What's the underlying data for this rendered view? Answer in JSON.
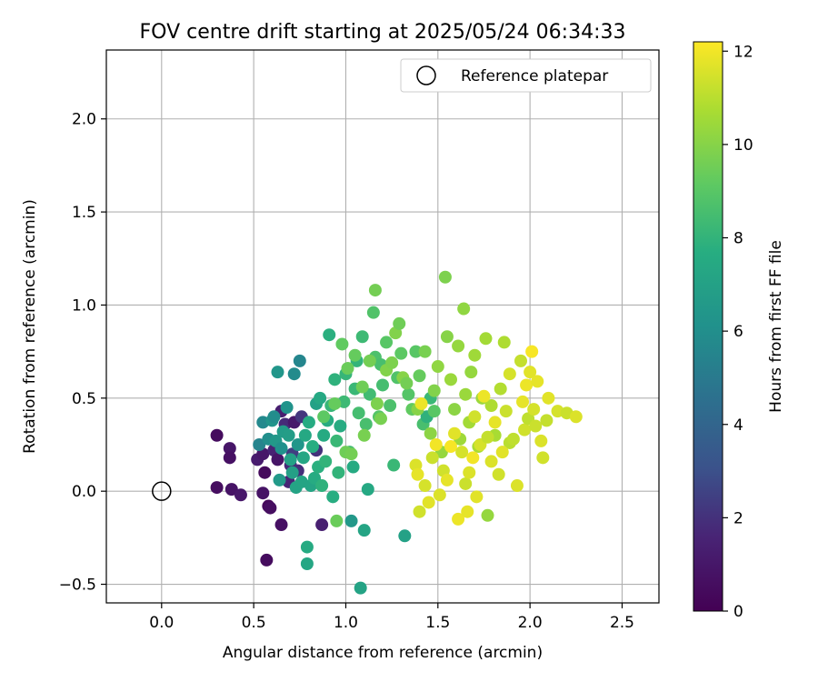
{
  "chart_data": {
    "type": "scatter",
    "title": "FOV centre drift starting at 2025/05/24 06:34:33",
    "xlabel": "Angular distance from reference (arcmin)",
    "ylabel": "Rotation from reference (arcmin)",
    "xlim": [
      -0.3,
      2.7
    ],
    "ylim": [
      -0.6,
      2.37
    ],
    "xticks": [
      0.0,
      0.5,
      1.0,
      1.5,
      2.0,
      2.5
    ],
    "xtick_labels": [
      "0.0",
      "0.5",
      "1.0",
      "1.5",
      "2.0",
      "2.5"
    ],
    "yticks": [
      -0.5,
      0.0,
      0.5,
      1.0,
      1.5,
      2.0
    ],
    "ytick_labels": [
      "−0.5",
      "0.0",
      "0.5",
      "1.0",
      "1.5",
      "2.0"
    ],
    "grid": true,
    "legend": {
      "position": "upper-right",
      "label": "Reference platepar",
      "marker": "open-circle"
    },
    "reference_point": {
      "x": 0.0,
      "y": 0.0
    },
    "colorbar": {
      "label": "Hours from first FF file",
      "colormap": "viridis",
      "range": [
        0,
        12.2
      ],
      "ticks": [
        0,
        2,
        4,
        6,
        8,
        10,
        12
      ],
      "tick_labels": [
        "0",
        "2",
        "4",
        "6",
        "8",
        "10",
        "12"
      ]
    },
    "points": [
      {
        "x": 0.3,
        "y": 0.3,
        "h": 0.5
      },
      {
        "x": 0.3,
        "y": 0.02,
        "h": 0.6
      },
      {
        "x": 0.37,
        "y": 0.23,
        "h": 0.9
      },
      {
        "x": 0.37,
        "y": 0.18,
        "h": 0.7
      },
      {
        "x": 0.38,
        "y": 0.01,
        "h": 0.8
      },
      {
        "x": 0.43,
        "y": -0.02,
        "h": 1.0
      },
      {
        "x": 0.52,
        "y": 0.17,
        "h": 1.2
      },
      {
        "x": 0.55,
        "y": 0.2,
        "h": 1.0
      },
      {
        "x": 0.56,
        "y": 0.1,
        "h": 0.4
      },
      {
        "x": 0.57,
        "y": -0.37,
        "h": 0.5
      },
      {
        "x": 0.55,
        "y": -0.01,
        "h": 0.8
      },
      {
        "x": 0.58,
        "y": -0.08,
        "h": 0.3
      },
      {
        "x": 0.59,
        "y": -0.09,
        "h": 0.6
      },
      {
        "x": 0.61,
        "y": 0.22,
        "h": 1.5
      },
      {
        "x": 0.63,
        "y": 0.17,
        "h": 0.9
      },
      {
        "x": 0.65,
        "y": 0.43,
        "h": 1.3
      },
      {
        "x": 0.65,
        "y": -0.18,
        "h": 0.7
      },
      {
        "x": 0.67,
        "y": 0.36,
        "h": 1.8
      },
      {
        "x": 0.69,
        "y": 0.05,
        "h": 1.6
      },
      {
        "x": 0.7,
        "y": 0.14,
        "h": 1.7
      },
      {
        "x": 0.71,
        "y": 0.2,
        "h": 2.4
      },
      {
        "x": 0.72,
        "y": 0.37,
        "h": 1.1
      },
      {
        "x": 0.74,
        "y": 0.11,
        "h": 1.9
      },
      {
        "x": 0.76,
        "y": 0.4,
        "h": 2.2
      },
      {
        "x": 0.84,
        "y": 0.22,
        "h": 2.0
      },
      {
        "x": 0.87,
        "y": -0.18,
        "h": 1.4
      },
      {
        "x": 0.53,
        "y": 0.25,
        "h": 5.5
      },
      {
        "x": 0.55,
        "y": 0.37,
        "h": 5.7
      },
      {
        "x": 0.58,
        "y": 0.28,
        "h": 6.0
      },
      {
        "x": 0.6,
        "y": 0.38,
        "h": 6.3
      },
      {
        "x": 0.61,
        "y": 0.4,
        "h": 5.9
      },
      {
        "x": 0.62,
        "y": 0.27,
        "h": 6.5
      },
      {
        "x": 0.63,
        "y": 0.64,
        "h": 6.4
      },
      {
        "x": 0.64,
        "y": 0.06,
        "h": 6.6
      },
      {
        "x": 0.65,
        "y": 0.23,
        "h": 6.1
      },
      {
        "x": 0.66,
        "y": 0.32,
        "h": 6.7
      },
      {
        "x": 0.68,
        "y": 0.45,
        "h": 6.2
      },
      {
        "x": 0.69,
        "y": 0.3,
        "h": 6.8
      },
      {
        "x": 0.7,
        "y": 0.17,
        "h": 7.0
      },
      {
        "x": 0.71,
        "y": 0.1,
        "h": 6.9
      },
      {
        "x": 0.72,
        "y": 0.63,
        "h": 5.8
      },
      {
        "x": 0.73,
        "y": 0.02,
        "h": 7.1
      },
      {
        "x": 0.74,
        "y": 0.25,
        "h": 6.4
      },
      {
        "x": 0.75,
        "y": 0.7,
        "h": 5.6
      },
      {
        "x": 0.76,
        "y": 0.05,
        "h": 7.2
      },
      {
        "x": 0.77,
        "y": 0.18,
        "h": 7.3
      },
      {
        "x": 0.78,
        "y": 0.3,
        "h": 7.4
      },
      {
        "x": 0.79,
        "y": -0.3,
        "h": 7.5
      },
      {
        "x": 0.79,
        "y": -0.39,
        "h": 7.3
      },
      {
        "x": 0.8,
        "y": 0.37,
        "h": 7.6
      },
      {
        "x": 0.81,
        "y": 0.03,
        "h": 7.2
      },
      {
        "x": 0.82,
        "y": 0.24,
        "h": 7.7
      },
      {
        "x": 0.83,
        "y": 0.07,
        "h": 7.6
      },
      {
        "x": 0.84,
        "y": 0.47,
        "h": 7.0
      },
      {
        "x": 0.85,
        "y": 0.13,
        "h": 7.8
      },
      {
        "x": 0.86,
        "y": 0.5,
        "h": 7.4
      },
      {
        "x": 0.87,
        "y": 0.03,
        "h": 7.9
      },
      {
        "x": 0.88,
        "y": 0.3,
        "h": 7.5
      },
      {
        "x": 0.89,
        "y": 0.16,
        "h": 8.0
      },
      {
        "x": 0.9,
        "y": 0.38,
        "h": 7.6
      },
      {
        "x": 0.91,
        "y": 0.84,
        "h": 7.8
      },
      {
        "x": 0.92,
        "y": 0.46,
        "h": 8.1
      },
      {
        "x": 0.93,
        "y": -0.03,
        "h": 7.7
      },
      {
        "x": 0.94,
        "y": 0.6,
        "h": 7.9
      },
      {
        "x": 0.95,
        "y": 0.27,
        "h": 8.2
      },
      {
        "x": 0.96,
        "y": 0.1,
        "h": 8.0
      },
      {
        "x": 0.97,
        "y": 0.35,
        "h": 7.6
      },
      {
        "x": 0.99,
        "y": 0.48,
        "h": 8.3
      },
      {
        "x": 1.0,
        "y": 0.63,
        "h": 8.1
      },
      {
        "x": 1.02,
        "y": 0.21,
        "h": 8.4
      },
      {
        "x": 1.03,
        "y": -0.16,
        "h": 6.5
      },
      {
        "x": 1.04,
        "y": 0.13,
        "h": 7.5
      },
      {
        "x": 1.05,
        "y": 0.55,
        "h": 8.2
      },
      {
        "x": 1.06,
        "y": 0.7,
        "h": 8.0
      },
      {
        "x": 1.07,
        "y": 0.42,
        "h": 8.5
      },
      {
        "x": 1.08,
        "y": -0.52,
        "h": 7.1
      },
      {
        "x": 1.09,
        "y": 0.83,
        "h": 8.3
      },
      {
        "x": 1.1,
        "y": -0.21,
        "h": 7.2
      },
      {
        "x": 1.11,
        "y": 0.36,
        "h": 8.6
      },
      {
        "x": 1.12,
        "y": 0.01,
        "h": 7.4
      },
      {
        "x": 1.13,
        "y": 0.52,
        "h": 8.4
      },
      {
        "x": 1.15,
        "y": 0.96,
        "h": 8.8
      },
      {
        "x": 1.16,
        "y": 0.72,
        "h": 8.7
      },
      {
        "x": 1.18,
        "y": 0.4,
        "h": 8.9
      },
      {
        "x": 1.19,
        "y": 0.68,
        "h": 8.6
      },
      {
        "x": 1.2,
        "y": 0.57,
        "h": 8.5
      },
      {
        "x": 1.22,
        "y": 0.8,
        "h": 9.0
      },
      {
        "x": 1.24,
        "y": 0.46,
        "h": 8.7
      },
      {
        "x": 1.26,
        "y": 0.14,
        "h": 8.2
      },
      {
        "x": 1.28,
        "y": 0.61,
        "h": 8.8
      },
      {
        "x": 1.3,
        "y": 0.74,
        "h": 9.1
      },
      {
        "x": 1.32,
        "y": -0.24,
        "h": 7.0
      },
      {
        "x": 1.34,
        "y": 0.52,
        "h": 8.9
      },
      {
        "x": 1.36,
        "y": 0.44,
        "h": 9.2
      },
      {
        "x": 1.38,
        "y": 0.75,
        "h": 9.0
      },
      {
        "x": 1.4,
        "y": 0.62,
        "h": 9.3
      },
      {
        "x": 1.42,
        "y": 0.36,
        "h": 8.6
      },
      {
        "x": 1.44,
        "y": 0.4,
        "h": 7.9
      },
      {
        "x": 1.46,
        "y": 0.5,
        "h": 8.2
      },
      {
        "x": 1.48,
        "y": 0.43,
        "h": 9.0
      },
      {
        "x": 0.88,
        "y": 0.4,
        "h": 9.1
      },
      {
        "x": 0.94,
        "y": 0.47,
        "h": 9.3
      },
      {
        "x": 0.95,
        "y": -0.16,
        "h": 9.4
      },
      {
        "x": 0.98,
        "y": 0.79,
        "h": 9.2
      },
      {
        "x": 1.0,
        "y": 0.21,
        "h": 9.5
      },
      {
        "x": 1.01,
        "y": 0.66,
        "h": 9.4
      },
      {
        "x": 1.03,
        "y": 0.2,
        "h": 9.6
      },
      {
        "x": 1.05,
        "y": 0.73,
        "h": 9.3
      },
      {
        "x": 1.09,
        "y": 0.56,
        "h": 9.5
      },
      {
        "x": 1.1,
        "y": 0.3,
        "h": 9.7
      },
      {
        "x": 1.13,
        "y": 0.7,
        "h": 9.6
      },
      {
        "x": 1.16,
        "y": 1.08,
        "h": 9.6
      },
      {
        "x": 1.17,
        "y": 0.47,
        "h": 9.8
      },
      {
        "x": 1.19,
        "y": 0.39,
        "h": 9.7
      },
      {
        "x": 1.22,
        "y": 0.65,
        "h": 9.9
      },
      {
        "x": 1.25,
        "y": 0.69,
        "h": 9.8
      },
      {
        "x": 1.27,
        "y": 0.85,
        "h": 9.9
      },
      {
        "x": 1.29,
        "y": 0.9,
        "h": 9.5
      },
      {
        "x": 1.31,
        "y": 0.61,
        "h": 10.0
      },
      {
        "x": 1.33,
        "y": 0.58,
        "h": 9.6
      },
      {
        "x": 1.39,
        "y": 0.44,
        "h": 10.0
      },
      {
        "x": 1.43,
        "y": 0.75,
        "h": 9.7
      },
      {
        "x": 1.46,
        "y": 0.31,
        "h": 10.1
      },
      {
        "x": 1.48,
        "y": 0.54,
        "h": 9.9
      },
      {
        "x": 1.5,
        "y": 0.67,
        "h": 10.2
      },
      {
        "x": 1.52,
        "y": 0.21,
        "h": 10.3
      },
      {
        "x": 1.54,
        "y": 1.15,
        "h": 9.8
      },
      {
        "x": 1.55,
        "y": 0.83,
        "h": 10.0
      },
      {
        "x": 1.57,
        "y": 0.6,
        "h": 10.4
      },
      {
        "x": 1.59,
        "y": 0.44,
        "h": 10.1
      },
      {
        "x": 1.61,
        "y": 0.78,
        "h": 10.3
      },
      {
        "x": 1.62,
        "y": 0.28,
        "h": 10.5
      },
      {
        "x": 1.64,
        "y": 0.98,
        "h": 10.2
      },
      {
        "x": 1.65,
        "y": 0.52,
        "h": 10.4
      },
      {
        "x": 1.67,
        "y": 0.37,
        "h": 10.6
      },
      {
        "x": 1.68,
        "y": 0.64,
        "h": 10.3
      },
      {
        "x": 1.7,
        "y": 0.73,
        "h": 10.5
      },
      {
        "x": 1.72,
        "y": 0.24,
        "h": 10.7
      },
      {
        "x": 1.74,
        "y": 0.5,
        "h": 10.4
      },
      {
        "x": 1.76,
        "y": 0.82,
        "h": 10.6
      },
      {
        "x": 1.77,
        "y": -0.13,
        "h": 10.3
      },
      {
        "x": 1.79,
        "y": 0.46,
        "h": 10.8
      },
      {
        "x": 1.81,
        "y": 0.3,
        "h": 10.7
      },
      {
        "x": 1.84,
        "y": 0.55,
        "h": 10.9
      },
      {
        "x": 1.86,
        "y": 0.8,
        "h": 10.8
      },
      {
        "x": 1.89,
        "y": 0.26,
        "h": 11.0
      },
      {
        "x": 1.38,
        "y": 0.14,
        "h": 11.6
      },
      {
        "x": 1.39,
        "y": 0.09,
        "h": 11.8
      },
      {
        "x": 1.4,
        "y": -0.11,
        "h": 11.4
      },
      {
        "x": 1.41,
        "y": 0.47,
        "h": 11.9
      },
      {
        "x": 1.43,
        "y": 0.03,
        "h": 11.5
      },
      {
        "x": 1.45,
        "y": -0.06,
        "h": 11.7
      },
      {
        "x": 1.47,
        "y": 0.18,
        "h": 11.3
      },
      {
        "x": 1.49,
        "y": 0.25,
        "h": 12.0
      },
      {
        "x": 1.51,
        "y": -0.02,
        "h": 11.6
      },
      {
        "x": 1.53,
        "y": 0.11,
        "h": 11.4
      },
      {
        "x": 1.55,
        "y": 0.06,
        "h": 11.8
      },
      {
        "x": 1.57,
        "y": 0.24,
        "h": 12.1
      },
      {
        "x": 1.59,
        "y": 0.31,
        "h": 11.7
      },
      {
        "x": 1.61,
        "y": -0.15,
        "h": 11.9
      },
      {
        "x": 1.63,
        "y": 0.21,
        "h": 11.5
      },
      {
        "x": 1.65,
        "y": 0.04,
        "h": 11.3
      },
      {
        "x": 1.66,
        "y": -0.11,
        "h": 11.8
      },
      {
        "x": 1.67,
        "y": 0.1,
        "h": 11.6
      },
      {
        "x": 1.69,
        "y": 0.18,
        "h": 12.0
      },
      {
        "x": 1.7,
        "y": 0.4,
        "h": 11.4
      },
      {
        "x": 1.71,
        "y": -0.03,
        "h": 11.7
      },
      {
        "x": 1.73,
        "y": 0.25,
        "h": 11.5
      },
      {
        "x": 1.75,
        "y": 0.51,
        "h": 11.9
      },
      {
        "x": 1.77,
        "y": 0.29,
        "h": 11.2
      },
      {
        "x": 1.79,
        "y": 0.16,
        "h": 11.6
      },
      {
        "x": 1.81,
        "y": 0.37,
        "h": 11.8
      },
      {
        "x": 1.83,
        "y": 0.09,
        "h": 11.4
      },
      {
        "x": 1.85,
        "y": 0.21,
        "h": 11.7
      },
      {
        "x": 1.87,
        "y": 0.43,
        "h": 11.3
      },
      {
        "x": 1.89,
        "y": 0.63,
        "h": 11.5
      },
      {
        "x": 1.91,
        "y": 0.28,
        "h": 11.1
      },
      {
        "x": 1.93,
        "y": 0.03,
        "h": 11.6
      },
      {
        "x": 1.95,
        "y": 0.7,
        "h": 11.2
      },
      {
        "x": 1.96,
        "y": 0.48,
        "h": 11.8
      },
      {
        "x": 1.97,
        "y": 0.33,
        "h": 11.4
      },
      {
        "x": 1.98,
        "y": 0.57,
        "h": 11.9
      },
      {
        "x": 1.99,
        "y": 0.39,
        "h": 11.1
      },
      {
        "x": 2.0,
        "y": 0.64,
        "h": 11.7
      },
      {
        "x": 2.01,
        "y": 0.75,
        "h": 12.1
      },
      {
        "x": 2.02,
        "y": 0.44,
        "h": 11.5
      },
      {
        "x": 2.03,
        "y": 0.35,
        "h": 11.3
      },
      {
        "x": 2.04,
        "y": 0.59,
        "h": 11.8
      },
      {
        "x": 2.06,
        "y": 0.27,
        "h": 11.6
      },
      {
        "x": 2.07,
        "y": 0.18,
        "h": 11.4
      },
      {
        "x": 2.09,
        "y": 0.38,
        "h": 11.2
      },
      {
        "x": 2.1,
        "y": 0.5,
        "h": 11.7
      },
      {
        "x": 2.15,
        "y": 0.43,
        "h": 11.5
      },
      {
        "x": 2.2,
        "y": 0.42,
        "h": 11.3
      },
      {
        "x": 2.25,
        "y": 0.4,
        "h": 11.6
      }
    ]
  }
}
